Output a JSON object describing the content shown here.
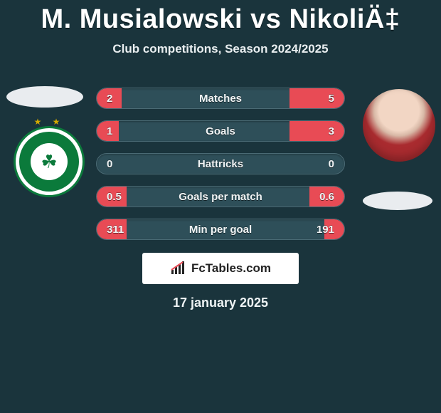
{
  "title": "M. Musialowski vs NikoliÄ‡",
  "subtitle": "Club competitions, Season 2024/2025",
  "date_label": "17 january 2025",
  "branding_text": "FcTables.com",
  "colors": {
    "background": "#1a343c",
    "bar_track": "#2e4f59",
    "bar_fill": "#e84b55",
    "title_color": "#ffffff",
    "text_color": "#e9eef0",
    "branding_bg": "#ffffff",
    "branding_text": "#222222",
    "club_green": "#0b7a3b"
  },
  "typography": {
    "title_fontsize": 38,
    "title_weight": 800,
    "subtitle_fontsize": 17,
    "row_fontsize": 15,
    "date_fontsize": 18
  },
  "rows": [
    {
      "metric": "Matches",
      "left": "2",
      "right": "5",
      "left_pct": 10,
      "right_pct": 22
    },
    {
      "metric": "Goals",
      "left": "1",
      "right": "3",
      "left_pct": 9,
      "right_pct": 22
    },
    {
      "metric": "Hattricks",
      "left": "0",
      "right": "0",
      "left_pct": 0,
      "right_pct": 0
    },
    {
      "metric": "Goals per match",
      "left": "0.5",
      "right": "0.6",
      "left_pct": 12,
      "right_pct": 14
    },
    {
      "metric": "Min per goal",
      "left": "311",
      "right": "191",
      "left_pct": 12,
      "right_pct": 8
    }
  ],
  "left_badge": {
    "type": "club-crest",
    "name": "omonia-nicosia",
    "stars": 2
  },
  "right_badge": {
    "type": "player-photo"
  }
}
